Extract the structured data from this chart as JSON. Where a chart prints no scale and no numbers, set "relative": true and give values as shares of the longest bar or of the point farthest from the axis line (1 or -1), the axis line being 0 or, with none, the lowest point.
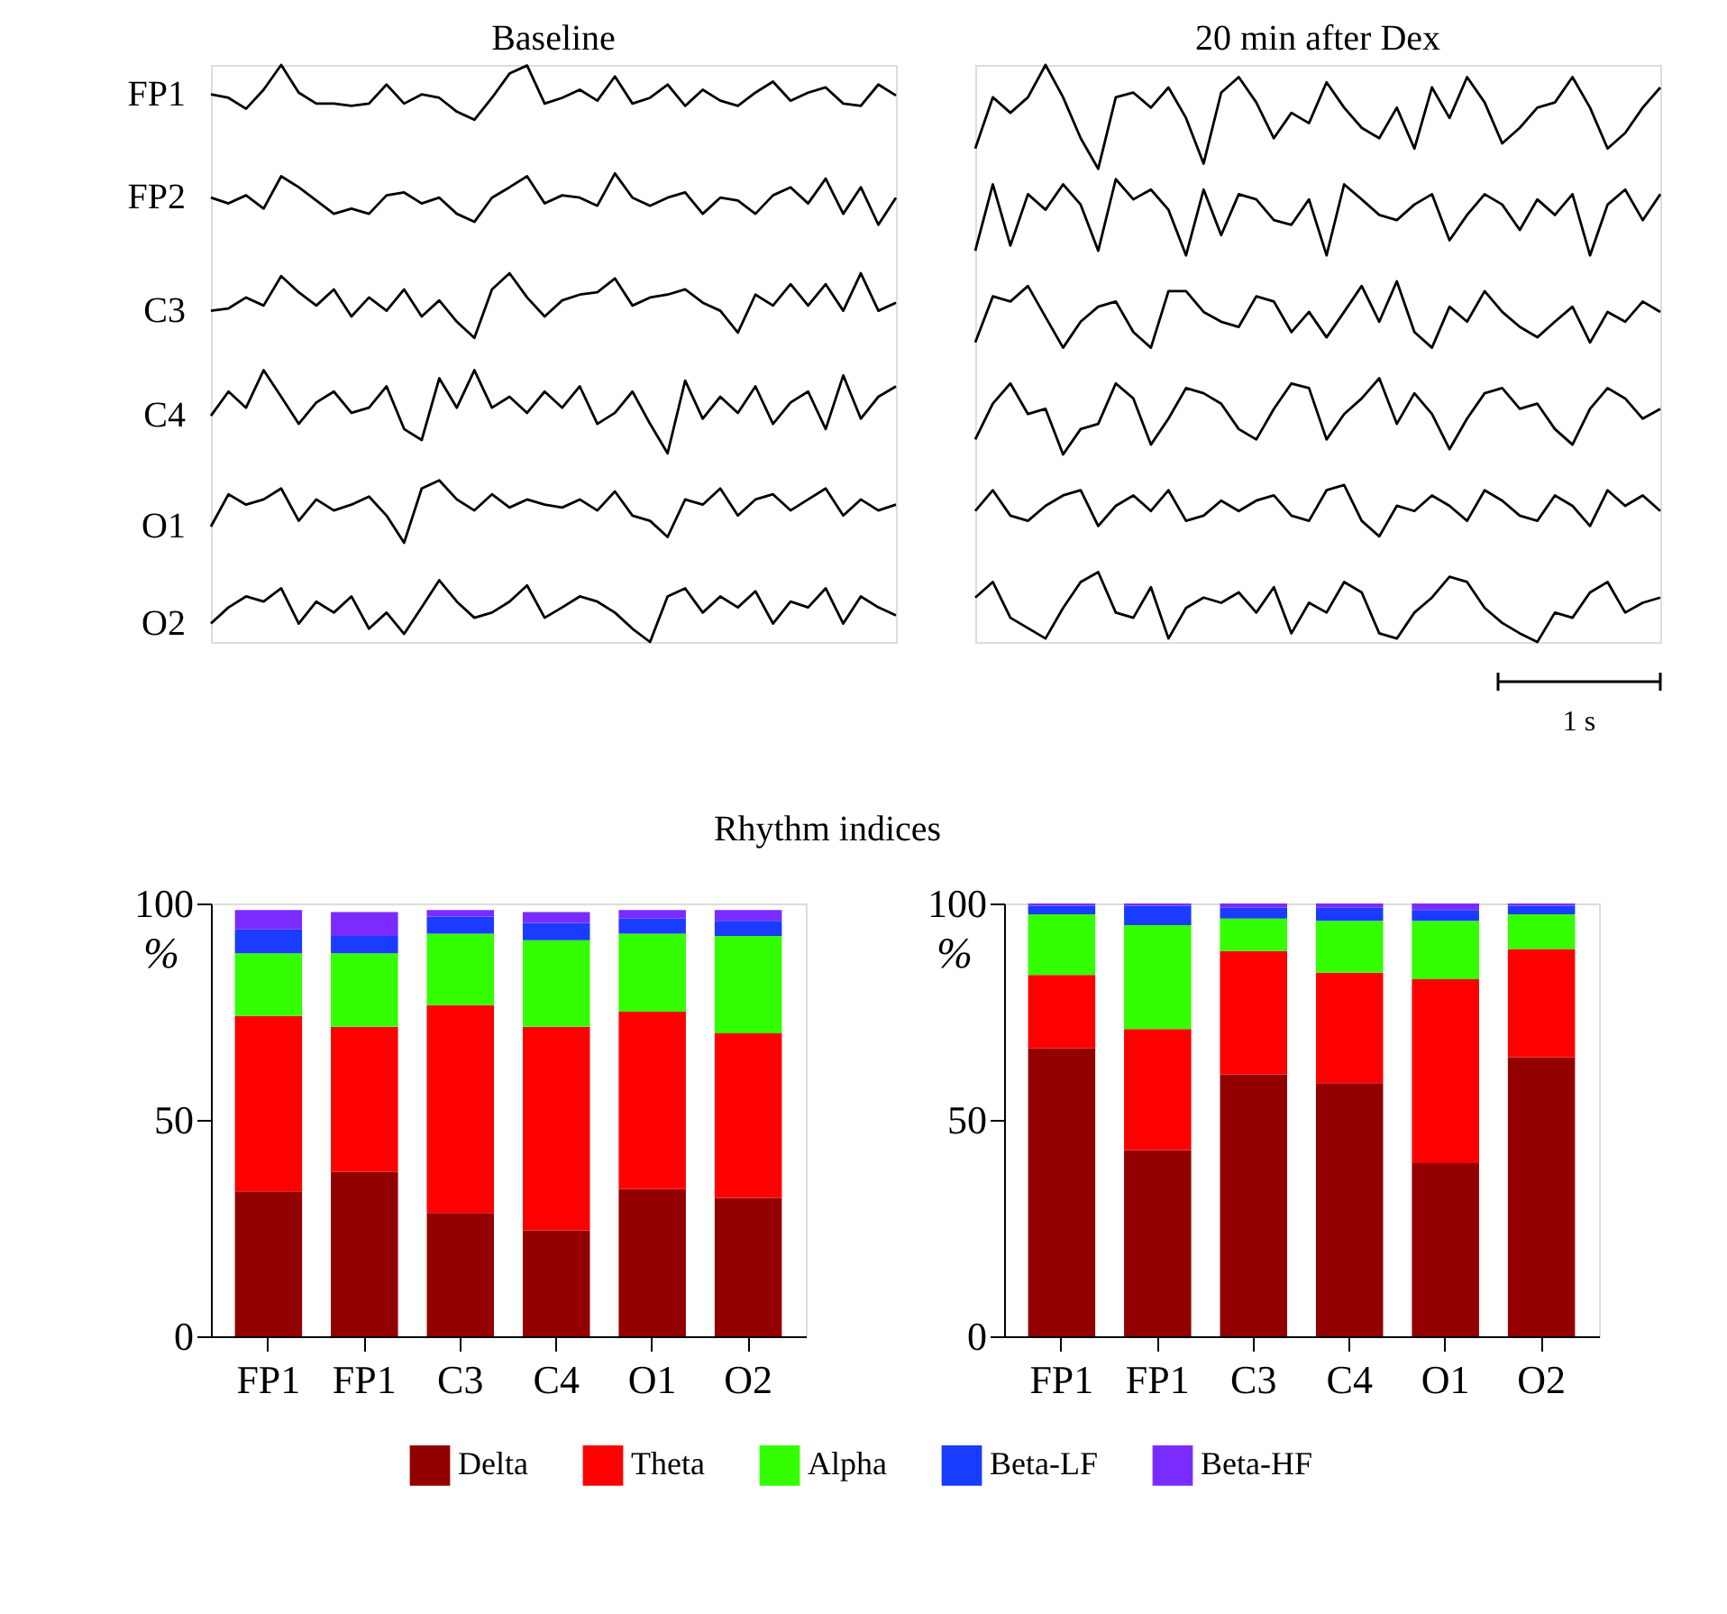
{
  "chart_data": [
    {
      "type": "line",
      "title": "Baseline",
      "relative": true,
      "legend": false,
      "categories": [
        null,
        null,
        null,
        null,
        null,
        null,
        null,
        null,
        null,
        null,
        null,
        null,
        null,
        null,
        null,
        null,
        null,
        null,
        null,
        null,
        null,
        null,
        null,
        null,
        null,
        null,
        null,
        null,
        null,
        null,
        null,
        null,
        null,
        null,
        null,
        null,
        null,
        null,
        null,
        null
      ],
      "series": [
        {
          "name": "FP1",
          "color": "#000000",
          "values": [
            0.949,
            0.943,
            0.924,
            0.957,
            1.0,
            0.952,
            0.933,
            0.933,
            0.929,
            0.933,
            0.966,
            0.933,
            0.949,
            0.943,
            0.919,
            0.905,
            0.943,
            0.985,
            0.999,
            0.933,
            0.943,
            0.957,
            0.938,
            0.98,
            0.933,
            0.943,
            0.966,
            0.929,
            0.957,
            0.938,
            0.929,
            0.952,
            0.971,
            0.938,
            0.952,
            0.961,
            0.933,
            0.929,
            0.966,
            0.947
          ]
        },
        {
          "name": "FP2",
          "color": "#000000",
          "values": [
            0.77,
            0.76,
            0.774,
            0.751,
            0.807,
            0.788,
            0.765,
            0.742,
            0.751,
            0.742,
            0.774,
            0.779,
            0.76,
            0.77,
            0.742,
            0.728,
            0.77,
            0.788,
            0.807,
            0.76,
            0.774,
            0.77,
            0.756,
            0.812,
            0.77,
            0.756,
            0.77,
            0.779,
            0.742,
            0.77,
            0.765,
            0.742,
            0.774,
            0.788,
            0.76,
            0.803,
            0.742,
            0.788,
            0.723,
            0.77
          ]
        },
        {
          "name": "C3",
          "color": "#000000",
          "values": [
            0.574,
            0.578,
            0.597,
            0.583,
            0.634,
            0.606,
            0.583,
            0.611,
            0.564,
            0.597,
            0.574,
            0.611,
            0.564,
            0.592,
            0.555,
            0.527,
            0.611,
            0.639,
            0.597,
            0.564,
            0.592,
            0.602,
            0.606,
            0.63,
            0.583,
            0.597,
            0.602,
            0.611,
            0.588,
            0.574,
            0.536,
            0.602,
            0.583,
            0.62,
            0.583,
            0.62,
            0.574,
            0.639,
            0.574,
            0.588
          ]
        },
        {
          "name": "C4",
          "color": "#000000",
          "values": [
            0.392,
            0.434,
            0.406,
            0.471,
            0.425,
            0.378,
            0.415,
            0.434,
            0.397,
            0.406,
            0.443,
            0.369,
            0.35,
            0.457,
            0.406,
            0.471,
            0.406,
            0.425,
            0.397,
            0.434,
            0.406,
            0.443,
            0.378,
            0.397,
            0.434,
            0.378,
            0.327,
            0.453,
            0.387,
            0.425,
            0.397,
            0.443,
            0.378,
            0.415,
            0.434,
            0.369,
            0.462,
            0.387,
            0.425,
            0.443
          ]
        },
        {
          "name": "O1",
          "color": "#000000",
          "values": [
            0.2,
            0.256,
            0.238,
            0.247,
            0.266,
            0.21,
            0.247,
            0.228,
            0.238,
            0.252,
            0.219,
            0.172,
            0.266,
            0.28,
            0.247,
            0.228,
            0.256,
            0.233,
            0.247,
            0.238,
            0.233,
            0.247,
            0.228,
            0.261,
            0.219,
            0.21,
            0.182,
            0.247,
            0.238,
            0.266,
            0.219,
            0.247,
            0.256,
            0.228,
            0.247,
            0.266,
            0.219,
            0.247,
            0.228,
            0.238
          ]
        },
        {
          "name": "O2",
          "color": "#000000",
          "values": [
            0.032,
            0.06,
            0.079,
            0.07,
            0.093,
            0.032,
            0.07,
            0.051,
            0.079,
            0.023,
            0.051,
            0.014,
            0.06,
            0.107,
            0.07,
            0.042,
            0.051,
            0.07,
            0.098,
            0.042,
            0.06,
            0.079,
            0.07,
            0.051,
            0.023,
            0.0,
            0.079,
            0.093,
            0.051,
            0.079,
            0.06,
            0.088,
            0.032,
            0.07,
            0.06,
            0.093,
            0.032,
            0.079,
            0.06,
            0.046
          ]
        }
      ]
    },
    {
      "type": "line",
      "title": "20 min after Dex",
      "relative": true,
      "legend": false,
      "annotations": [
        "1 s"
      ],
      "categories": [
        null,
        null,
        null,
        null,
        null,
        null,
        null,
        null,
        null,
        null,
        null,
        null,
        null,
        null,
        null,
        null,
        null,
        null,
        null,
        null,
        null,
        null,
        null,
        null,
        null,
        null,
        null,
        null,
        null,
        null,
        null,
        null,
        null,
        null,
        null,
        null,
        null,
        null,
        null,
        null
      ],
      "series": [
        {
          "color": "#000000",
          "values": [
            0.855,
            0.944,
            0.917,
            0.944,
            1.0,
            0.944,
            0.873,
            0.82,
            0.944,
            0.952,
            0.926,
            0.961,
            0.908,
            0.829,
            0.952,
            0.979,
            0.935,
            0.873,
            0.917,
            0.899,
            0.97,
            0.926,
            0.891,
            0.873,
            0.926,
            0.855,
            0.961,
            0.908,
            0.979,
            0.935,
            0.864,
            0.891,
            0.926,
            0.935,
            0.979,
            0.926,
            0.855,
            0.882,
            0.926,
            0.961
          ]
        },
        {
          "color": "#000000",
          "values": [
            0.678,
            0.793,
            0.687,
            0.776,
            0.749,
            0.793,
            0.758,
            0.678,
            0.802,
            0.767,
            0.784,
            0.749,
            0.67,
            0.784,
            0.705,
            0.776,
            0.767,
            0.731,
            0.723,
            0.767,
            0.67,
            0.793,
            0.767,
            0.74,
            0.731,
            0.758,
            0.776,
            0.696,
            0.74,
            0.776,
            0.758,
            0.714,
            0.767,
            0.74,
            0.776,
            0.67,
            0.758,
            0.784,
            0.731,
            0.776
          ]
        },
        {
          "color": "#000000",
          "values": [
            0.519,
            0.599,
            0.59,
            0.617,
            0.563,
            0.51,
            0.555,
            0.581,
            0.59,
            0.537,
            0.51,
            0.608,
            0.608,
            0.572,
            0.555,
            0.546,
            0.599,
            0.59,
            0.537,
            0.572,
            0.528,
            0.572,
            0.617,
            0.555,
            0.625,
            0.537,
            0.51,
            0.581,
            0.555,
            0.608,
            0.572,
            0.546,
            0.528,
            0.555,
            0.581,
            0.519,
            0.572,
            0.555,
            0.59,
            0.572
          ]
        },
        {
          "color": "#000000",
          "values": [
            0.351,
            0.413,
            0.448,
            0.395,
            0.404,
            0.325,
            0.369,
            0.378,
            0.448,
            0.422,
            0.342,
            0.387,
            0.44,
            0.431,
            0.413,
            0.369,
            0.351,
            0.404,
            0.448,
            0.44,
            0.351,
            0.395,
            0.422,
            0.457,
            0.378,
            0.431,
            0.395,
            0.334,
            0.387,
            0.431,
            0.44,
            0.404,
            0.413,
            0.369,
            0.342,
            0.404,
            0.44,
            0.422,
            0.387,
            0.404
          ]
        },
        {
          "color": "#000000",
          "values": [
            0.227,
            0.263,
            0.219,
            0.21,
            0.236,
            0.254,
            0.263,
            0.201,
            0.236,
            0.254,
            0.227,
            0.263,
            0.21,
            0.219,
            0.245,
            0.227,
            0.245,
            0.254,
            0.219,
            0.21,
            0.263,
            0.272,
            0.21,
            0.183,
            0.236,
            0.227,
            0.254,
            0.236,
            0.21,
            0.263,
            0.245,
            0.219,
            0.21,
            0.254,
            0.236,
            0.201,
            0.263,
            0.236,
            0.254,
            0.227
          ]
        },
        {
          "color": "#000000",
          "values": [
            0.077,
            0.104,
            0.042,
            0.024,
            0.006,
            0.059,
            0.104,
            0.121,
            0.051,
            0.042,
            0.095,
            0.006,
            0.059,
            0.077,
            0.068,
            0.086,
            0.051,
            0.095,
            0.015,
            0.068,
            0.051,
            0.104,
            0.086,
            0.015,
            0.006,
            0.051,
            0.077,
            0.113,
            0.104,
            0.059,
            0.033,
            0.015,
            0.0,
            0.051,
            0.042,
            0.086,
            0.104,
            0.051,
            0.068,
            0.077
          ]
        }
      ]
    },
    {
      "type": "bar",
      "title": "Rhythm indices",
      "stacked": true,
      "ylabel": "%",
      "legend": "bottom",
      "ylim": [
        0,
        100
      ],
      "yticks": [
        0,
        50,
        100
      ],
      "categories": [
        "FP1",
        "FP1",
        "C3",
        "C4",
        "O1",
        "O2"
      ],
      "series": [
        {
          "name": "Delta",
          "color": "#930000",
          "values": [
            33.5,
            38,
            28.5,
            24.5,
            34,
            32
          ]
        },
        {
          "name": "Theta",
          "color": "#ff0000",
          "values": [
            40.5,
            33.5,
            48,
            47,
            41,
            38
          ]
        },
        {
          "name": "Alpha",
          "color": "#33ff00",
          "values": [
            14.5,
            17,
            16.5,
            20,
            18,
            22.5
          ]
        },
        {
          "name": "Beta-LF",
          "color": "#1a3cff",
          "values": [
            5.5,
            4,
            4,
            4,
            3.5,
            3.5
          ]
        },
        {
          "name": "Beta-HF",
          "color": "#7a2cff",
          "values": [
            4.5,
            5.5,
            1.5,
            2.5,
            2,
            2.5
          ]
        }
      ]
    },
    {
      "type": "bar",
      "stacked": true,
      "ylabel": "%",
      "ylim": [
        0,
        100
      ],
      "yticks": [
        0,
        50,
        100
      ],
      "categories": [
        "FP1",
        "FP1",
        "C3",
        "C4",
        "O1",
        "O2"
      ],
      "series": [
        {
          "color": "#930000",
          "values": [
            66.5,
            43,
            60.5,
            58.5,
            40,
            64.5
          ]
        },
        {
          "color": "#ff0000",
          "values": [
            17,
            28,
            28.5,
            25.5,
            42.5,
            25
          ]
        },
        {
          "color": "#33ff00",
          "values": [
            14,
            24,
            7.5,
            12,
            13.5,
            8
          ]
        },
        {
          "color": "#1a3cff",
          "values": [
            2,
            4.5,
            2.5,
            3,
            2.5,
            2
          ]
        },
        {
          "color": "#7a2cff",
          "values": [
            0.5,
            0.5,
            1,
            1,
            1.5,
            0.5
          ]
        }
      ]
    }
  ]
}
